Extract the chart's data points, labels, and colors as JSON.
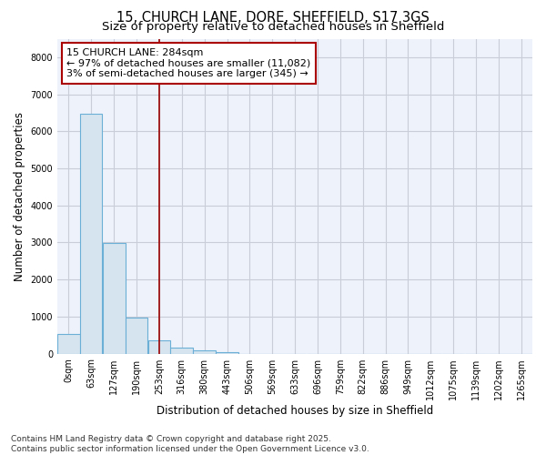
{
  "title_line1": "15, CHURCH LANE, DORE, SHEFFIELD, S17 3GS",
  "title_line2": "Size of property relative to detached houses in Sheffield",
  "xlabel": "Distribution of detached houses by size in Sheffield",
  "ylabel": "Number of detached properties",
  "bar_color": "#d6e4f0",
  "bar_edge_color": "#6baed6",
  "axes_background_color": "#eef2fa",
  "fig_background_color": "#ffffff",
  "grid_color": "#c8cdd8",
  "bin_labels": [
    "0sqm",
    "63sqm",
    "127sqm",
    "190sqm",
    "253sqm",
    "316sqm",
    "380sqm",
    "443sqm",
    "506sqm",
    "569sqm",
    "633sqm",
    "696sqm",
    "759sqm",
    "822sqm",
    "886sqm",
    "949sqm",
    "1012sqm",
    "1075sqm",
    "1139sqm",
    "1202sqm",
    "1265sqm"
  ],
  "bar_values": [
    540,
    6480,
    2980,
    980,
    370,
    160,
    95,
    50,
    0,
    0,
    0,
    0,
    0,
    0,
    0,
    0,
    0,
    0,
    0,
    0,
    0
  ],
  "bin_edges": [
    0,
    63,
    127,
    190,
    253,
    316,
    380,
    443,
    506,
    569,
    633,
    696,
    759,
    822,
    886,
    949,
    1012,
    1075,
    1139,
    1202,
    1265
  ],
  "bin_width": 63,
  "ylim": [
    0,
    8500
  ],
  "yticks": [
    0,
    1000,
    2000,
    3000,
    4000,
    5000,
    6000,
    7000,
    8000
  ],
  "xlim_max": 1328,
  "property_size": 284,
  "vline_color": "#990000",
  "annotation_box_facecolor": "#ffffff",
  "annotation_box_edgecolor": "#aa0000",
  "annotation_text_line1": "15 CHURCH LANE: 284sqm",
  "annotation_text_line2": "← 97% of detached houses are smaller (11,082)",
  "annotation_text_line3": "3% of semi-detached houses are larger (345) →",
  "footer_text": "Contains HM Land Registry data © Crown copyright and database right 2025.\nContains public sector information licensed under the Open Government Licence v3.0.",
  "title_fontsize": 10.5,
  "subtitle_fontsize": 9.5,
  "axis_label_fontsize": 8.5,
  "tick_fontsize": 7,
  "annotation_fontsize": 8,
  "footer_fontsize": 6.5
}
